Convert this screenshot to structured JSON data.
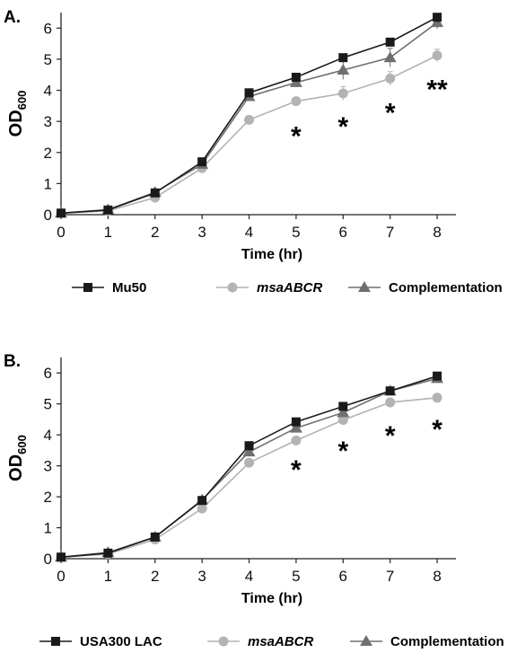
{
  "chart_data": [
    {
      "type": "line",
      "panel_label": "A.",
      "ylabel": "OD",
      "ylabel_sub": "600",
      "xlabel": "Time (hr)",
      "x": [
        0,
        1,
        2,
        3,
        4,
        5,
        6,
        7,
        8
      ],
      "xlim": [
        0,
        8.4
      ],
      "ylim": [
        0,
        6.5
      ],
      "yticks": [
        0,
        1,
        2,
        3,
        4,
        5,
        6
      ],
      "grid": false,
      "legend_position": "bottom",
      "series": [
        {
          "name": "Mu50",
          "marker": "square",
          "color": "#1a1a1a",
          "values": [
            0.05,
            0.15,
            0.7,
            1.7,
            3.92,
            4.42,
            5.05,
            5.55,
            6.35
          ],
          "errors": [
            0.02,
            0.03,
            0.05,
            0.06,
            0.06,
            0.08,
            0.08,
            0.1,
            0.12
          ]
        },
        {
          "name": "msaABCR",
          "italic": true,
          "marker": "circle",
          "color": "#b3b3b3",
          "values": [
            0.05,
            0.12,
            0.55,
            1.5,
            3.05,
            3.65,
            3.9,
            4.38,
            5.12
          ],
          "errors": [
            0.02,
            0.03,
            0.05,
            0.06,
            0.06,
            0.1,
            0.22,
            0.22,
            0.2
          ]
        },
        {
          "name": "Complementation",
          "marker": "triangle",
          "color": "#707070",
          "values": [
            0.05,
            0.16,
            0.72,
            1.62,
            3.8,
            4.25,
            4.65,
            5.05,
            6.18
          ],
          "errors": [
            0.02,
            0.03,
            0.05,
            0.06,
            0.06,
            0.15,
            0.3,
            0.3,
            0.2
          ]
        }
      ],
      "annotations": [
        {
          "x": 5,
          "y": 2.7,
          "text": "*"
        },
        {
          "x": 6,
          "y": 3.0,
          "text": "*"
        },
        {
          "x": 7,
          "y": 3.45,
          "text": "*"
        },
        {
          "x": 8,
          "y": 4.2,
          "text": "**"
        }
      ]
    },
    {
      "type": "line",
      "panel_label": "B.",
      "ylabel": "OD",
      "ylabel_sub": "600",
      "xlabel": "Time (hr)",
      "x": [
        0,
        1,
        2,
        3,
        4,
        5,
        6,
        7,
        8
      ],
      "xlim": [
        0,
        8.4
      ],
      "ylim": [
        0,
        6.5
      ],
      "yticks": [
        0,
        1,
        2,
        3,
        4,
        5,
        6
      ],
      "grid": false,
      "legend_position": "bottom",
      "series": [
        {
          "name": "USA300 LAC",
          "marker": "square",
          "color": "#1a1a1a",
          "values": [
            0.05,
            0.18,
            0.7,
            1.88,
            3.65,
            4.42,
            4.92,
            5.42,
            5.9
          ],
          "errors": [
            0.02,
            0.03,
            0.05,
            0.05,
            0.06,
            0.06,
            0.06,
            0.06,
            0.06
          ]
        },
        {
          "name": "msaABCR",
          "italic": true,
          "marker": "circle",
          "color": "#b3b3b3",
          "values": [
            0.05,
            0.15,
            0.62,
            1.62,
            3.1,
            3.82,
            4.48,
            5.05,
            5.2
          ],
          "errors": [
            0.02,
            0.03,
            0.05,
            0.05,
            0.06,
            0.06,
            0.06,
            0.06,
            0.06
          ]
        },
        {
          "name": "Complementation",
          "marker": "triangle",
          "color": "#707070",
          "values": [
            0.05,
            0.2,
            0.7,
            1.9,
            3.45,
            4.22,
            4.72,
            5.42,
            5.82
          ],
          "errors": [
            0.02,
            0.03,
            0.05,
            0.05,
            0.06,
            0.06,
            0.06,
            0.06,
            0.06
          ]
        }
      ],
      "annotations": [
        {
          "x": 5,
          "y": 3.05,
          "text": "*"
        },
        {
          "x": 6,
          "y": 3.65,
          "text": "*"
        },
        {
          "x": 7,
          "y": 4.15,
          "text": "*"
        },
        {
          "x": 8,
          "y": 4.35,
          "text": "*"
        }
      ]
    }
  ]
}
